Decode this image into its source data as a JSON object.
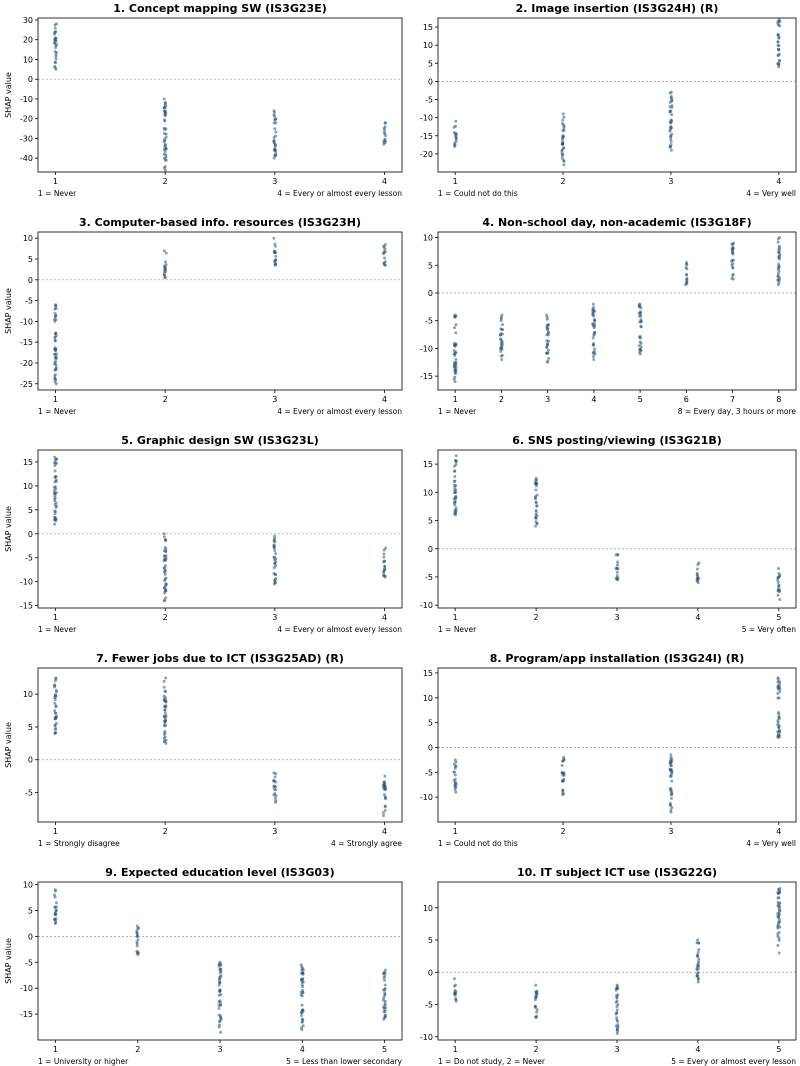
{
  "chart_data": [
    {
      "type": "scatter",
      "title": "1. Concept mapping SW (IS3G23E)",
      "ylabel": "SHAP value",
      "x": [
        1,
        2,
        3,
        4
      ],
      "xticks": [
        "1",
        "2",
        "3",
        "4"
      ],
      "ylim": [
        -47,
        31
      ],
      "yticks": [
        30,
        20,
        10,
        0,
        -10,
        -20,
        -30,
        -40
      ],
      "x_notes": {
        "left": "1 = Never",
        "right": "4 = Every or almost every lesson"
      },
      "zero_line": true,
      "series": [
        {
          "values": [
            {
              "x": 1,
              "ymin": 5,
              "ymax": 28
            },
            {
              "x": 2,
              "ymin": -46,
              "ymax": -10
            },
            {
              "x": 3,
              "ymin": -40,
              "ymax": -16
            },
            {
              "x": 4,
              "ymin": -33,
              "ymax": -22
            }
          ]
        }
      ]
    },
    {
      "type": "scatter",
      "title": "2. Image insertion (IS3G24H) (R)",
      "ylabel": "",
      "x": [
        1,
        2,
        3,
        4
      ],
      "xticks": [
        "1",
        "2",
        "3",
        "4"
      ],
      "ylim": [
        -25,
        17.5
      ],
      "yticks": [
        15,
        10,
        5,
        0,
        -5,
        -10,
        -15,
        -20
      ],
      "x_notes": {
        "left": "1 = Could not do this",
        "right": "4 = Very well"
      },
      "zero_line": true,
      "series": [
        {
          "values": [
            {
              "x": 1,
              "ymin": -18,
              "ymax": -11
            },
            {
              "x": 2,
              "ymin": -23,
              "ymax": -9
            },
            {
              "x": 3,
              "ymin": -19,
              "ymax": -3
            },
            {
              "x": 4,
              "ymin": 4,
              "ymax": 17
            }
          ]
        }
      ]
    },
    {
      "type": "scatter",
      "title": "3. Computer-based info. resources (IS3G23H)",
      "ylabel": "SHAP value",
      "x": [
        1,
        2,
        3,
        4
      ],
      "xticks": [
        "1",
        "2",
        "3",
        "4"
      ],
      "ylim": [
        -26.5,
        11.5
      ],
      "yticks": [
        10,
        5,
        0,
        -5,
        -10,
        -15,
        -20,
        -25
      ],
      "x_notes": {
        "left": "1 = Never",
        "right": "4 = Every or almost every lesson"
      },
      "zero_line": true,
      "series": [
        {
          "values": [
            {
              "x": 1,
              "ymin": -25,
              "ymax": -6
            },
            {
              "x": 2,
              "ymin": 0.5,
              "ymax": 7
            },
            {
              "x": 3,
              "ymin": 3.5,
              "ymax": 10
            },
            {
              "x": 4,
              "ymin": 3.5,
              "ymax": 8.5
            }
          ]
        }
      ]
    },
    {
      "type": "scatter",
      "title": "4. Non-school day, non-academic (IS3G18F)",
      "ylabel": "",
      "x": [
        1,
        2,
        3,
        4,
        5,
        6,
        7,
        8
      ],
      "xticks": [
        "1",
        "2",
        "3",
        "4",
        "5",
        "6",
        "7",
        "8"
      ],
      "ylim": [
        -17.5,
        11
      ],
      "yticks": [
        10,
        5,
        0,
        -5,
        -10,
        -15
      ],
      "x_notes": {
        "left": "1 = Never",
        "right": "8 = Every day, 3 hours or more"
      },
      "zero_line": true,
      "series": [
        {
          "values": [
            {
              "x": 1,
              "ymin": -16,
              "ymax": -4
            },
            {
              "x": 2,
              "ymin": -12,
              "ymax": -4
            },
            {
              "x": 3,
              "ymin": -12.5,
              "ymax": -4
            },
            {
              "x": 4,
              "ymin": -12,
              "ymax": -2
            },
            {
              "x": 5,
              "ymin": -11,
              "ymax": -2
            },
            {
              "x": 6,
              "ymin": 1.5,
              "ymax": 5.5
            },
            {
              "x": 7,
              "ymin": 2.5,
              "ymax": 9
            },
            {
              "x": 8,
              "ymin": 1.5,
              "ymax": 10
            }
          ]
        }
      ]
    },
    {
      "type": "scatter",
      "title": "5. Graphic design SW (IS3G23L)",
      "ylabel": "SHAP value",
      "x": [
        1,
        2,
        3,
        4
      ],
      "xticks": [
        "1",
        "2",
        "3",
        "4"
      ],
      "ylim": [
        -15.5,
        17.5
      ],
      "yticks": [
        15,
        10,
        5,
        0,
        -5,
        -10,
        -15
      ],
      "x_notes": {
        "left": "1 = Never",
        "right": "4 = Every or almost every lesson"
      },
      "zero_line": true,
      "series": [
        {
          "values": [
            {
              "x": 1,
              "ymin": 2,
              "ymax": 16
            },
            {
              "x": 2,
              "ymin": -14,
              "ymax": 0
            },
            {
              "x": 3,
              "ymin": -10.5,
              "ymax": -0.5
            },
            {
              "x": 4,
              "ymin": -9,
              "ymax": -3
            }
          ]
        }
      ]
    },
    {
      "type": "scatter",
      "title": "6. SNS posting/viewing (IS3G21B)",
      "ylabel": "",
      "x": [
        1,
        2,
        3,
        4,
        5
      ],
      "xticks": [
        "1",
        "2",
        "3",
        "4",
        "5"
      ],
      "ylim": [
        -10.5,
        17.5
      ],
      "yticks": [
        15,
        10,
        5,
        0,
        -5,
        -10
      ],
      "x_notes": {
        "left": "1 = Never",
        "right": "5 = Very often"
      },
      "zero_line": true,
      "series": [
        {
          "values": [
            {
              "x": 1,
              "ymin": 6,
              "ymax": 16.5
            },
            {
              "x": 2,
              "ymin": 4,
              "ymax": 12.5
            },
            {
              "x": 3,
              "ymin": -5.5,
              "ymax": -1
            },
            {
              "x": 4,
              "ymin": -6,
              "ymax": -2.5
            },
            {
              "x": 5,
              "ymin": -9,
              "ymax": -3.5
            }
          ]
        }
      ]
    },
    {
      "type": "scatter",
      "title": "7. Fewer jobs due to ICT (IS3G25AD) (R)",
      "ylabel": "SHAP value",
      "x": [
        1,
        2,
        3,
        4
      ],
      "xticks": [
        "1",
        "2",
        "3",
        "4"
      ],
      "ylim": [
        -9.5,
        14
      ],
      "yticks": [
        10,
        5,
        0,
        -5
      ],
      "x_notes": {
        "left": "1 = Strongly disagree",
        "right": "4 = Strongly agree"
      },
      "zero_line": true,
      "series": [
        {
          "values": [
            {
              "x": 1,
              "ymin": 4,
              "ymax": 12.5
            },
            {
              "x": 2,
              "ymin": 2.5,
              "ymax": 12.5
            },
            {
              "x": 3,
              "ymin": -6.5,
              "ymax": -2
            },
            {
              "x": 4,
              "ymin": -8.5,
              "ymax": -2.5
            }
          ]
        }
      ]
    },
    {
      "type": "scatter",
      "title": "8. Program/app installation (IS3G24I) (R)",
      "ylabel": "",
      "x": [
        1,
        2,
        3,
        4
      ],
      "xticks": [
        "1",
        "2",
        "3",
        "4"
      ],
      "ylim": [
        -15,
        16
      ],
      "yticks": [
        15,
        10,
        5,
        0,
        -5,
        -10
      ],
      "x_notes": {
        "left": "1 = Could not do this",
        "right": "4 = Very well"
      },
      "zero_line": true,
      "series": [
        {
          "values": [
            {
              "x": 1,
              "ymin": -9,
              "ymax": -2.5
            },
            {
              "x": 2,
              "ymin": -9.5,
              "ymax": -2
            },
            {
              "x": 3,
              "ymin": -13,
              "ymax": -1.5
            },
            {
              "x": 4,
              "ymin": 2,
              "ymax": 14
            }
          ]
        }
      ]
    },
    {
      "type": "scatter",
      "title": "9. Expected education level (IS3G03)",
      "ylabel": "SHAP value",
      "x": [
        1,
        2,
        3,
        4,
        5
      ],
      "xticks": [
        "1",
        "2",
        "3",
        "4",
        "5"
      ],
      "ylim": [
        -20,
        10.5
      ],
      "yticks": [
        10,
        5,
        0,
        -5,
        -10,
        -15
      ],
      "x_notes": {
        "left": "1 = University or higher",
        "right": "5 = Less than lower secondary"
      },
      "zero_line": true,
      "series": [
        {
          "values": [
            {
              "x": 1,
              "ymin": 2.5,
              "ymax": 9
            },
            {
              "x": 2,
              "ymin": -3.5,
              "ymax": 2
            },
            {
              "x": 3,
              "ymin": -18.5,
              "ymax": -5
            },
            {
              "x": 4,
              "ymin": -18,
              "ymax": -5.5
            },
            {
              "x": 5,
              "ymin": -16,
              "ymax": -6.5
            }
          ]
        }
      ]
    },
    {
      "type": "scatter",
      "title": "10. IT subject ICT use (IS3G22G)",
      "ylabel": "",
      "x": [
        1,
        2,
        3,
        4,
        5
      ],
      "xticks": [
        "1",
        "2",
        "3",
        "4",
        "5"
      ],
      "ylim": [
        -10.5,
        14
      ],
      "yticks": [
        10,
        5,
        0,
        -5,
        -10
      ],
      "x_notes": {
        "left": "1 = Do not study, 2 = Never",
        "right": "5 = Every or almost every lesson"
      },
      "zero_line": true,
      "series": [
        {
          "values": [
            {
              "x": 1,
              "ymin": -4.5,
              "ymax": -1
            },
            {
              "x": 2,
              "ymin": -7,
              "ymax": -2
            },
            {
              "x": 3,
              "ymin": -9.5,
              "ymax": -2
            },
            {
              "x": 4,
              "ymin": -1.5,
              "ymax": 5
            },
            {
              "x": 5,
              "ymin": 3,
              "ymax": 13
            }
          ]
        }
      ]
    }
  ]
}
